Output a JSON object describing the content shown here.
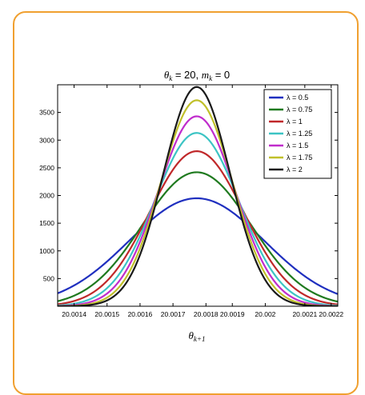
{
  "chart_data": {
    "type": "line",
    "title_main": "θ",
    "title_sub": "k",
    "title_rest": " = 20, ",
    "title_m": "m",
    "title_msub": "k",
    "title_tail": " = 0",
    "xlabel_main": "θ",
    "xlabel_sub": "k+1",
    "ylabel": "",
    "xlim": [
      20.00137,
      20.00222
    ],
    "ylim": [
      0,
      4000
    ],
    "x_ticks": [
      20.00142,
      20.00152,
      20.00162,
      20.00172,
      20.00182,
      20.0019,
      20.002,
      20.00212,
      20.0022
    ],
    "x_tick_labels": [
      "20.0014",
      "20.0015",
      "20.0016",
      "20.0017",
      "20.0018",
      "20.0019",
      "20.002",
      "20.0021",
      "20.0022"
    ],
    "y_ticks": [
      500,
      1000,
      1500,
      2000,
      2500,
      3000,
      3500
    ],
    "y_tick_labels": [
      "500",
      "1000",
      "1500",
      "2000",
      "2500",
      "3000",
      "3500"
    ],
    "legend_position": "top-right",
    "grid": false,
    "series": [
      {
        "name": "λ = 0.5",
        "color": "#1f2fbf",
        "peak": 1950,
        "center": 20.001792,
        "sigma": 0.000205
      },
      {
        "name": "λ = 0.75",
        "color": "#1f7a1f",
        "peak": 2420,
        "center": 20.001792,
        "sigma": 0.000165
      },
      {
        "name": "λ = 1",
        "color": "#c0282a",
        "peak": 2800,
        "center": 20.001792,
        "sigma": 0.000143
      },
      {
        "name": "λ = 1.25",
        "color": "#3cc4c4",
        "peak": 3130,
        "center": 20.001792,
        "sigma": 0.000128
      },
      {
        "name": "λ = 1.5",
        "color": "#c02ccc",
        "peak": 3430,
        "center": 20.001792,
        "sigma": 0.000117
      },
      {
        "name": "λ = 1.75",
        "color": "#c0c02a",
        "peak": 3720,
        "center": 20.001792,
        "sigma": 0.000108
      },
      {
        "name": "λ = 2",
        "color": "#1a1a1a",
        "peak": 3960,
        "center": 20.001792,
        "sigma": 0.000101
      }
    ]
  }
}
